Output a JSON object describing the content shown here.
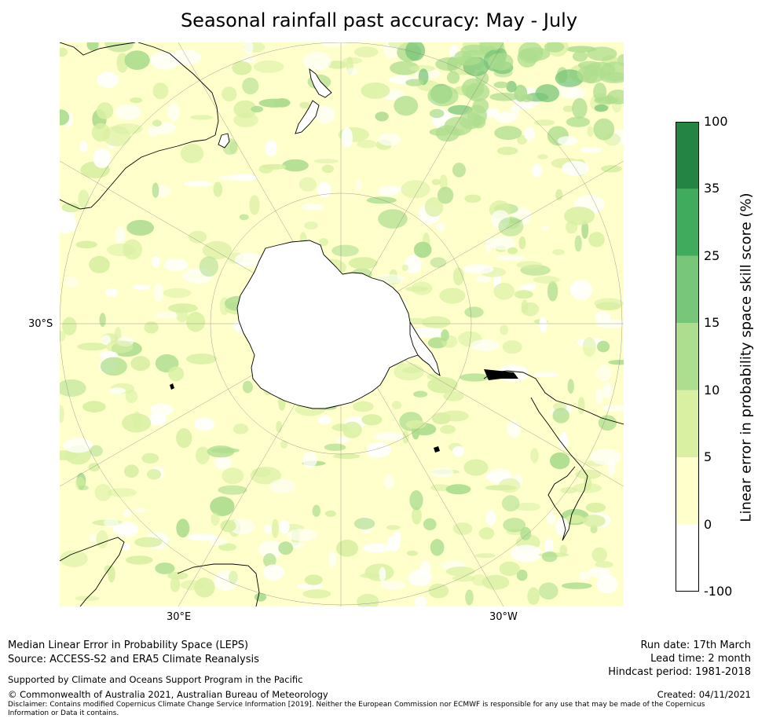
{
  "title": "Seasonal rainfall past accuracy: May - July",
  "map": {
    "lat_label": "30°S",
    "lon_labels": [
      "30°E",
      "30°W"
    ],
    "colors": {
      "background_low": "#ffffcc",
      "mid": "#d9f0a3",
      "land_outline": "#000000",
      "grid": "#999999"
    }
  },
  "colorbar": {
    "label": "Linear error in probability space skill score (%)",
    "ticks": [
      "100",
      "35",
      "25",
      "15",
      "10",
      "5",
      "0",
      "-100"
    ],
    "colors": [
      "#238443",
      "#41ab5d",
      "#78c679",
      "#addd8e",
      "#d9f0a3",
      "#ffffcc",
      "#ffffff"
    ]
  },
  "footer": {
    "line1": "Median Linear Error in Probability Space (LEPS)",
    "line2": "Source: ACCESS-S2 and ERA5 Climate Reanalysis",
    "support": "Supported by Climate and Oceans Support Program in the Pacific",
    "copyright": "© Commonwealth of Australia 2021, Australian Bureau of Meteorology",
    "disclaimer": "Disclaimer: Contains modified Copernicus Climate Change Service Information [2019]. Neither the European Commission nor ECMWF is responsible for any use that may be made of the Copernicus Information or Data it contains.",
    "run_date": "Run date: 17th March",
    "lead_time": "Lead time: 2 month",
    "hindcast": "Hindcast period: 1981-2018",
    "created": "Created: 04/11/2021"
  }
}
